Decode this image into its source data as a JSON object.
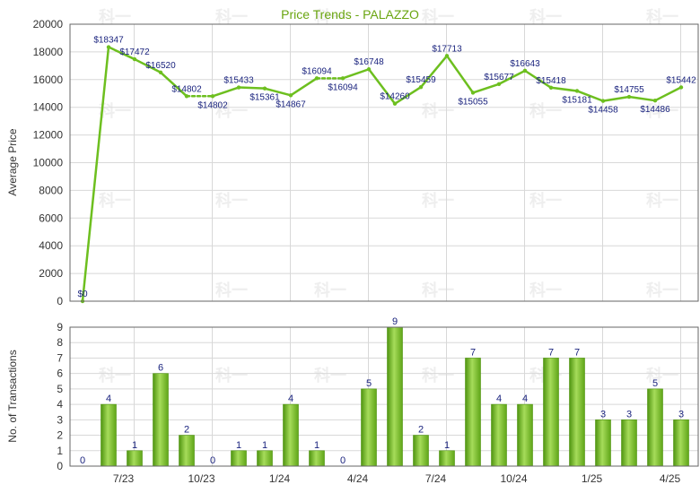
{
  "colors": {
    "line": "#6dbf1f",
    "bar": "#7cc42a",
    "bar_dark": "#4f9410",
    "title": "#6aa510",
    "label": "#1a237e"
  },
  "watermark": "科一",
  "chart_data": [
    {
      "type": "line",
      "title": "Price Trends - PALAZZO",
      "ylabel": "Average Price",
      "ylim": [
        0,
        20000
      ],
      "yticks": [
        0,
        2000,
        4000,
        6000,
        8000,
        10000,
        12000,
        14000,
        16000,
        18000,
        20000
      ],
      "x_tick_labels": [
        "7/23",
        "10/23",
        "1/24",
        "4/24",
        "7/24",
        "10/24",
        "1/25",
        "4/25"
      ],
      "values": [
        0,
        18347,
        17472,
        16520,
        14802,
        14802,
        15433,
        15361,
        14867,
        16094,
        16094,
        16748,
        14260,
        15459,
        17713,
        15055,
        15677,
        16643,
        15418,
        15181,
        14458,
        14755,
        14486,
        15442
      ],
      "labels": [
        "$0",
        "$18347",
        "$17472",
        "$16520",
        "$14802",
        "$14802",
        "$15433",
        "$15361",
        "$14867",
        "$16094",
        "$16094",
        "$16748",
        "$14260",
        "$15459",
        "$17713",
        "$15055",
        "$15677",
        "$16643",
        "$15418",
        "$15181",
        "$14458",
        "$14755",
        "$14486",
        "$15442"
      ],
      "dashed_segments": [
        [
          4,
          5
        ],
        [
          9,
          10
        ]
      ]
    },
    {
      "type": "bar",
      "ylabel": "No. of Transactions",
      "ylim": [
        0,
        9
      ],
      "yticks": [
        0,
        1,
        2,
        3,
        4,
        5,
        6,
        7,
        8,
        9
      ],
      "x_tick_labels": [
        "7/23",
        "10/23",
        "1/24",
        "4/24",
        "7/24",
        "10/24",
        "1/25",
        "4/25"
      ],
      "values": [
        0,
        4,
        1,
        6,
        2,
        0,
        1,
        1,
        4,
        1,
        0,
        5,
        9,
        2,
        1,
        7,
        4,
        4,
        7,
        7,
        3,
        3,
        5,
        3
      ]
    }
  ]
}
